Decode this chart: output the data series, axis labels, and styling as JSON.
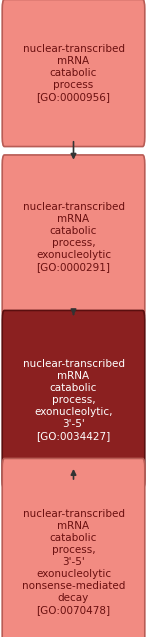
{
  "boxes": [
    {
      "label": "nuclear-transcribed\nmRNA\ncatabolic\nprocess\n[GO:0000956]",
      "facecolor": "#f28b82",
      "edgecolor": "#b85c55",
      "textcolor": "#6b1010",
      "fontsize": 7.5
    },
    {
      "label": "nuclear-transcribed\nmRNA\ncatabolic\nprocess,\nexonucleolytic\n[GO:0000291]",
      "facecolor": "#f28b82",
      "edgecolor": "#b85c55",
      "textcolor": "#6b1010",
      "fontsize": 7.5
    },
    {
      "label": "nuclear-transcribed\nmRNA\ncatabolic\nprocess,\nexonucleolytic,\n3'-5'\n[GO:0034427]",
      "facecolor": "#8b2020",
      "edgecolor": "#5a0f0f",
      "textcolor": "#ffffff",
      "fontsize": 7.5
    },
    {
      "label": "nuclear-transcribed\nmRNA\ncatabolic\nprocess,\n3'-5'\nexonucleolytic\nnonsense-mediated\ndecay\n[GO:0070478]",
      "facecolor": "#f28b82",
      "edgecolor": "#b85c55",
      "textcolor": "#6b1010",
      "fontsize": 7.5
    }
  ],
  "background_color": "#ffffff",
  "arrow_color": "#333333",
  "fig_width": 1.47,
  "fig_height": 6.37,
  "dpi": 100
}
